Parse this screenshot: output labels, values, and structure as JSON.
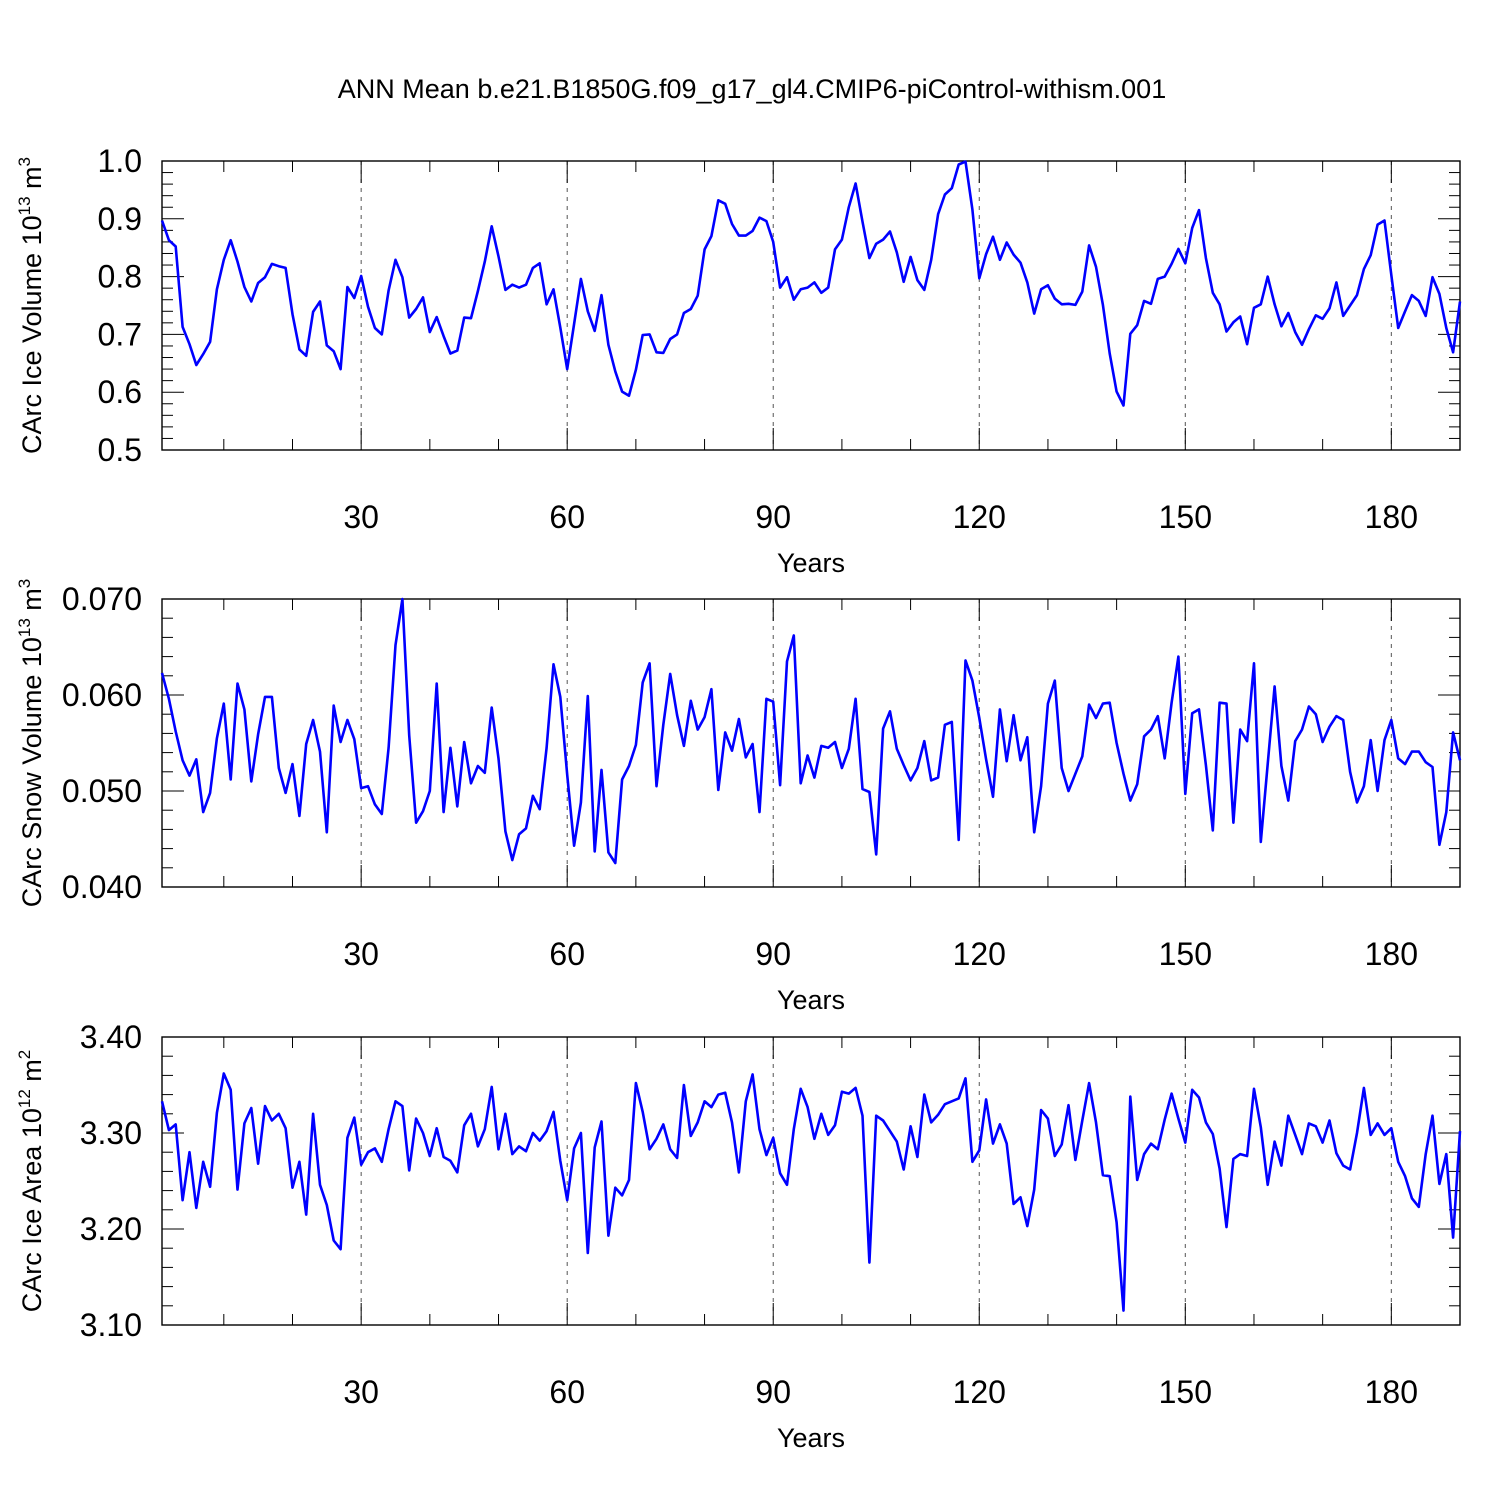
{
  "title": "ANN Mean b.e21.B1850G.f09_g17_gl4.CMIP6-piControl-withism.001",
  "series_color": "#0000ff",
  "chart_data": [
    {
      "type": "line",
      "ylabel": "CArc Ice Volume 10",
      "ylabel_exp": "13",
      "ylabel_unit": " m",
      "ylabel_unit_exp": "3",
      "xlabel": "Years",
      "xlim": [
        1,
        190
      ],
      "ylim": [
        0.5,
        1.0
      ],
      "xticks": [
        30,
        60,
        90,
        120,
        150,
        180
      ],
      "xtick_labels": [
        "30",
        "60",
        "90",
        "120",
        "150",
        "180"
      ],
      "yticks": [
        0.5,
        0.6,
        0.7,
        0.8,
        0.9,
        1.0
      ],
      "ytick_labels": [
        "0.5",
        "0.6",
        "0.7",
        "0.8",
        "0.9",
        "1.0"
      ],
      "y_minor_step": 0.02,
      "values": [
        0.897,
        0.863,
        0.852,
        0.713,
        0.683,
        0.647,
        0.666,
        0.687,
        0.778,
        0.829,
        0.863,
        0.826,
        0.782,
        0.757,
        0.789,
        0.799,
        0.822,
        0.818,
        0.815,
        0.735,
        0.674,
        0.663,
        0.739,
        0.757,
        0.681,
        0.671,
        0.64,
        0.782,
        0.763,
        0.801,
        0.748,
        0.711,
        0.7,
        0.776,
        0.829,
        0.799,
        0.729,
        0.744,
        0.764,
        0.704,
        0.73,
        0.697,
        0.667,
        0.672,
        0.729,
        0.728,
        0.775,
        0.826,
        0.887,
        0.835,
        0.777,
        0.786,
        0.781,
        0.786,
        0.815,
        0.823,
        0.752,
        0.778,
        0.712,
        0.64,
        0.718,
        0.796,
        0.74,
        0.706,
        0.768,
        0.682,
        0.636,
        0.601,
        0.594,
        0.639,
        0.699,
        0.7,
        0.669,
        0.668,
        0.692,
        0.7,
        0.737,
        0.744,
        0.767,
        0.847,
        0.87,
        0.932,
        0.926,
        0.891,
        0.871,
        0.871,
        0.879,
        0.902,
        0.896,
        0.86,
        0.781,
        0.799,
        0.76,
        0.778,
        0.781,
        0.79,
        0.772,
        0.781,
        0.847,
        0.864,
        0.92,
        0.961,
        0.895,
        0.832,
        0.857,
        0.864,
        0.878,
        0.842,
        0.791,
        0.834,
        0.794,
        0.777,
        0.829,
        0.908,
        0.942,
        0.953,
        0.994,
        0.999,
        0.916,
        0.797,
        0.839,
        0.869,
        0.829,
        0.859,
        0.838,
        0.824,
        0.79,
        0.736,
        0.778,
        0.785,
        0.762,
        0.752,
        0.753,
        0.751,
        0.774,
        0.854,
        0.817,
        0.751,
        0.667,
        0.601,
        0.577,
        0.701,
        0.716,
        0.758,
        0.753,
        0.796,
        0.8,
        0.822,
        0.848,
        0.823,
        0.884,
        0.915,
        0.832,
        0.772,
        0.752,
        0.705,
        0.721,
        0.731,
        0.683,
        0.746,
        0.752,
        0.8,
        0.752,
        0.714,
        0.737,
        0.704,
        0.682,
        0.709,
        0.733,
        0.727,
        0.745,
        0.79,
        0.732,
        0.75,
        0.768,
        0.813,
        0.837,
        0.89,
        0.897,
        0.803,
        0.711,
        0.74,
        0.768,
        0.758,
        0.732,
        0.799,
        0.77,
        0.711,
        0.669,
        0.757
      ]
    },
    {
      "type": "line",
      "ylabel": "CArc Snow Volume 10",
      "ylabel_exp": "13",
      "ylabel_unit": " m",
      "ylabel_unit_exp": "3",
      "xlabel": "Years",
      "xlim": [
        1,
        190
      ],
      "ylim": [
        0.04,
        0.07
      ],
      "xticks": [
        30,
        60,
        90,
        120,
        150,
        180
      ],
      "xtick_labels": [
        "30",
        "60",
        "90",
        "120",
        "150",
        "180"
      ],
      "yticks": [
        0.04,
        0.05,
        0.06,
        0.07
      ],
      "ytick_labels": [
        "0.040",
        "0.050",
        "0.060",
        "0.070"
      ],
      "y_minor_step": 0.002,
      "values": [
        0.0623,
        0.0596,
        0.0562,
        0.0532,
        0.0516,
        0.0533,
        0.0478,
        0.0498,
        0.0555,
        0.0591,
        0.0512,
        0.0612,
        0.0585,
        0.051,
        0.0559,
        0.0598,
        0.0598,
        0.0524,
        0.0498,
        0.0528,
        0.0474,
        0.0549,
        0.0574,
        0.0541,
        0.0457,
        0.0589,
        0.0551,
        0.0574,
        0.0554,
        0.0503,
        0.0505,
        0.0486,
        0.0476,
        0.0545,
        0.0652,
        0.07,
        0.0558,
        0.0467,
        0.0479,
        0.05,
        0.0612,
        0.0478,
        0.0545,
        0.0484,
        0.0551,
        0.0508,
        0.0526,
        0.0519,
        0.0587,
        0.0534,
        0.0458,
        0.0428,
        0.0455,
        0.0461,
        0.0495,
        0.0481,
        0.0545,
        0.0632,
        0.0598,
        0.0517,
        0.0443,
        0.0488,
        0.0599,
        0.0437,
        0.0522,
        0.0436,
        0.0425,
        0.0512,
        0.0526,
        0.0548,
        0.0613,
        0.0633,
        0.0505,
        0.0569,
        0.0622,
        0.0579,
        0.0547,
        0.0594,
        0.0564,
        0.0577,
        0.0606,
        0.0501,
        0.0561,
        0.0542,
        0.0575,
        0.0535,
        0.0549,
        0.0478,
        0.0596,
        0.0593,
        0.0506,
        0.0635,
        0.0662,
        0.0508,
        0.0537,
        0.0514,
        0.0547,
        0.0545,
        0.0551,
        0.0524,
        0.0544,
        0.0596,
        0.0502,
        0.0499,
        0.0434,
        0.0565,
        0.0583,
        0.0544,
        0.0527,
        0.0511,
        0.0524,
        0.0552,
        0.0511,
        0.0514,
        0.0569,
        0.0572,
        0.0449,
        0.0636,
        0.0615,
        0.0576,
        0.0533,
        0.0494,
        0.0585,
        0.0531,
        0.0579,
        0.0532,
        0.0556,
        0.0457,
        0.0505,
        0.0591,
        0.0615,
        0.0524,
        0.05,
        0.0518,
        0.0536,
        0.059,
        0.0576,
        0.0591,
        0.0592,
        0.055,
        0.0518,
        0.049,
        0.0507,
        0.0557,
        0.0564,
        0.0578,
        0.0534,
        0.0592,
        0.064,
        0.0497,
        0.0581,
        0.0585,
        0.0527,
        0.0459,
        0.0592,
        0.0591,
        0.0467,
        0.0564,
        0.0552,
        0.0633,
        0.0447,
        0.0528,
        0.0609,
        0.0526,
        0.049,
        0.0552,
        0.0564,
        0.0588,
        0.058,
        0.0551,
        0.0567,
        0.0578,
        0.0574,
        0.052,
        0.0488,
        0.0505,
        0.0553,
        0.05,
        0.0553,
        0.0574,
        0.0534,
        0.0528,
        0.0541,
        0.0541,
        0.053,
        0.0525,
        0.0444,
        0.0478,
        0.0561,
        0.0532
      ]
    },
    {
      "type": "line",
      "ylabel": "CArc Ice Area 10",
      "ylabel_exp": "12",
      "ylabel_unit": " m",
      "ylabel_unit_exp": "2",
      "xlabel": "Years",
      "xlim": [
        1,
        190
      ],
      "ylim": [
        3.1,
        3.4
      ],
      "xticks": [
        30,
        60,
        90,
        120,
        150,
        180
      ],
      "xtick_labels": [
        "30",
        "60",
        "90",
        "120",
        "150",
        "180"
      ],
      "yticks": [
        3.1,
        3.2,
        3.3,
        3.4
      ],
      "ytick_labels": [
        "3.10",
        "3.20",
        "3.30",
        "3.40"
      ],
      "y_minor_step": 0.02,
      "values": [
        3.333,
        3.303,
        3.309,
        3.23,
        3.28,
        3.222,
        3.27,
        3.244,
        3.321,
        3.362,
        3.345,
        3.241,
        3.31,
        3.326,
        3.268,
        3.328,
        3.313,
        3.32,
        3.305,
        3.243,
        3.27,
        3.215,
        3.32,
        3.246,
        3.225,
        3.188,
        3.179,
        3.295,
        3.316,
        3.267,
        3.28,
        3.284,
        3.27,
        3.304,
        3.333,
        3.328,
        3.261,
        3.315,
        3.3,
        3.276,
        3.305,
        3.275,
        3.271,
        3.259,
        3.308,
        3.32,
        3.286,
        3.304,
        3.348,
        3.283,
        3.32,
        3.278,
        3.286,
        3.281,
        3.3,
        3.292,
        3.302,
        3.322,
        3.271,
        3.23,
        3.284,
        3.3,
        3.175,
        3.285,
        3.312,
        3.193,
        3.243,
        3.235,
        3.251,
        3.352,
        3.322,
        3.283,
        3.294,
        3.309,
        3.283,
        3.274,
        3.35,
        3.297,
        3.311,
        3.333,
        3.327,
        3.34,
        3.342,
        3.311,
        3.259,
        3.333,
        3.361,
        3.304,
        3.277,
        3.295,
        3.258,
        3.246,
        3.304,
        3.346,
        3.327,
        3.294,
        3.32,
        3.298,
        3.308,
        3.343,
        3.341,
        3.347,
        3.318,
        3.165,
        3.318,
        3.313,
        3.302,
        3.291,
        3.262,
        3.307,
        3.275,
        3.34,
        3.311,
        3.319,
        3.33,
        3.333,
        3.336,
        3.357,
        3.27,
        3.282,
        3.335,
        3.289,
        3.309,
        3.289,
        3.226,
        3.233,
        3.203,
        3.241,
        3.324,
        3.315,
        3.276,
        3.288,
        3.329,
        3.272,
        3.313,
        3.352,
        3.311,
        3.256,
        3.255,
        3.207,
        3.115,
        3.338,
        3.251,
        3.278,
        3.289,
        3.283,
        3.314,
        3.341,
        3.315,
        3.29,
        3.345,
        3.337,
        3.311,
        3.299,
        3.263,
        3.202,
        3.273,
        3.278,
        3.276,
        3.346,
        3.306,
        3.246,
        3.291,
        3.266,
        3.318,
        3.298,
        3.278,
        3.31,
        3.307,
        3.29,
        3.313,
        3.279,
        3.266,
        3.262,
        3.3,
        3.347,
        3.298,
        3.31,
        3.298,
        3.305,
        3.27,
        3.255,
        3.232,
        3.223,
        3.278,
        3.318,
        3.247,
        3.278,
        3.191,
        3.302
      ]
    }
  ]
}
